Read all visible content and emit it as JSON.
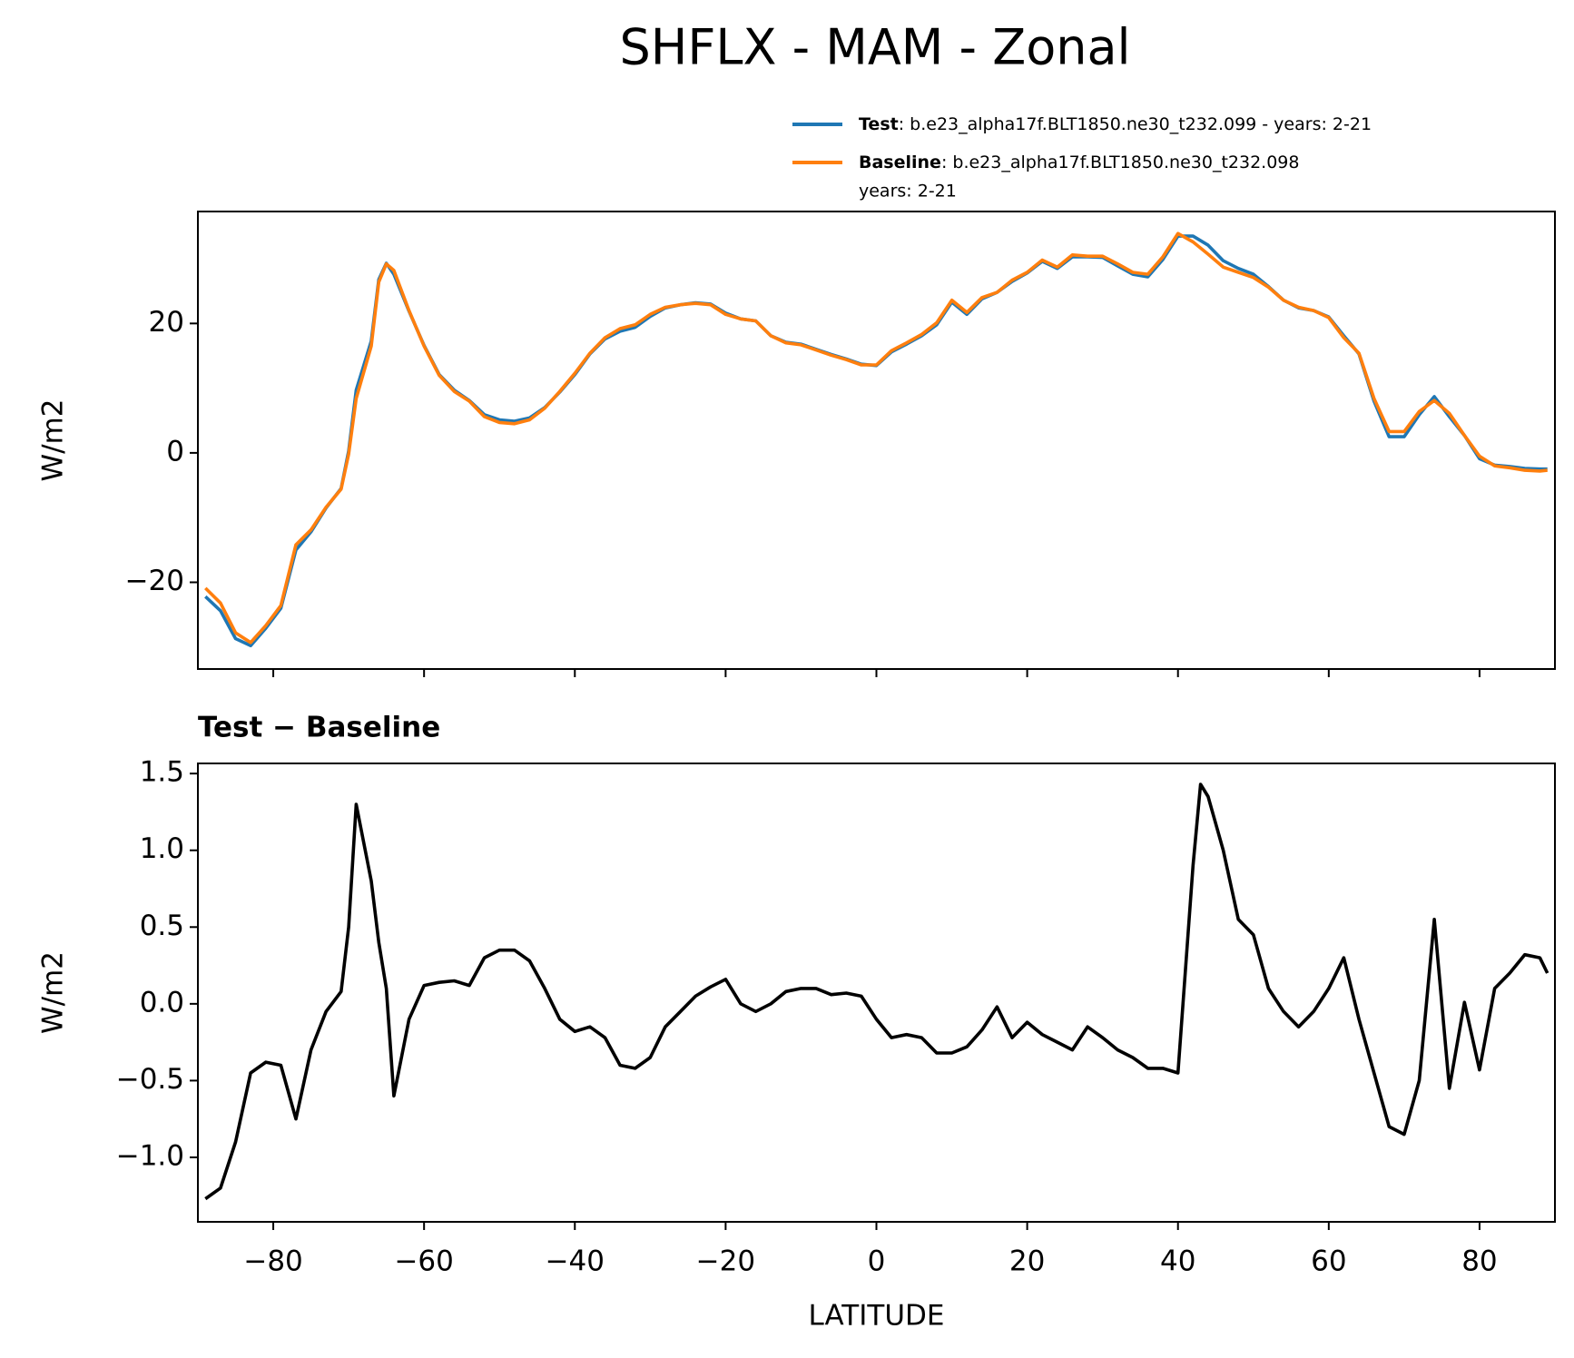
{
  "title": "SHFLX - MAM - Zonal",
  "chart_data": [
    {
      "type": "line",
      "ylabel": "W/m2",
      "x": [
        -89,
        -87,
        -85,
        -83,
        -81,
        -79,
        -77,
        -75,
        -73,
        -71,
        -70,
        -69,
        -67,
        -66,
        -65,
        -64,
        -62,
        -60,
        -58,
        -56,
        -54,
        -52,
        -50,
        -48,
        -46,
        -44,
        -42,
        -40,
        -38,
        -36,
        -34,
        -32,
        -30,
        -28,
        -26,
        -24,
        -22,
        -20,
        -18,
        -16,
        -14,
        -12,
        -10,
        -8,
        -6,
        -4,
        -2,
        0,
        2,
        4,
        6,
        8,
        10,
        12,
        14,
        16,
        18,
        20,
        22,
        24,
        26,
        28,
        30,
        32,
        34,
        36,
        38,
        40,
        42,
        44,
        46,
        48,
        50,
        52,
        54,
        56,
        58,
        60,
        62,
        64,
        66,
        68,
        70,
        72,
        74,
        76,
        78,
        80,
        82,
        84,
        86,
        88,
        89
      ],
      "series": [
        {
          "name": "Test",
          "description": [
            ": b.e23_alpha17f.BLT1850.ne30_t232.099 - years: 2-21"
          ],
          "color": "#1f77b4",
          "values": [
            -22.2,
            -24.4,
            -28.7,
            -29.8,
            -27.1,
            -24.0,
            -15.0,
            -12.2,
            -8.5,
            -5.5,
            0.3,
            9.7,
            17.3,
            26.8,
            29.3,
            27.6,
            21.9,
            16.6,
            12.1,
            9.7,
            8.1,
            5.9,
            5.1,
            4.9,
            5.4,
            7.0,
            9.4,
            12.1,
            15.3,
            17.6,
            18.8,
            19.4,
            21.1,
            22.4,
            22.9,
            23.2,
            23.0,
            21.6,
            20.7,
            20.4,
            18.1,
            17.1,
            16.8,
            16.0,
            15.2,
            14.5,
            13.7,
            13.5,
            15.6,
            16.8,
            18.1,
            19.8,
            23.3,
            21.4,
            23.8,
            24.8,
            26.5,
            27.8,
            29.6,
            28.5,
            30.3,
            30.3,
            30.2,
            28.9,
            27.6,
            27.2,
            29.9,
            33.5,
            33.5,
            32.1,
            29.7,
            28.5,
            27.6,
            25.7,
            23.6,
            22.4,
            22.0,
            21.0,
            18.1,
            15.3,
            8.0,
            2.5,
            2.5,
            5.9,
            8.7,
            5.6,
            2.7,
            -0.9,
            -1.9,
            -2.1,
            -2.4,
            -2.5,
            -2.5
          ]
        },
        {
          "name": "Baseline",
          "description": [
            ": b.e23_alpha17f.BLT1850.ne30_t232.098",
            "years: 2-21"
          ],
          "color": "#ff7f0e",
          "values": [
            -20.9,
            -23.2,
            -27.8,
            -29.3,
            -26.7,
            -23.6,
            -14.2,
            -11.9,
            -8.4,
            -5.6,
            -0.2,
            8.4,
            16.5,
            26.4,
            29.2,
            28.2,
            22.0,
            16.5,
            12.0,
            9.5,
            8.0,
            5.6,
            4.7,
            4.5,
            5.1,
            6.9,
            9.5,
            12.3,
            15.4,
            17.8,
            19.2,
            19.8,
            21.4,
            22.5,
            22.9,
            23.1,
            22.9,
            21.4,
            20.7,
            20.4,
            18.1,
            17.0,
            16.7,
            15.9,
            15.1,
            14.4,
            13.6,
            13.6,
            15.8,
            17.0,
            18.3,
            20.1,
            23.6,
            21.7,
            24.0,
            24.8,
            26.7,
            27.9,
            29.8,
            28.7,
            30.6,
            30.4,
            30.4,
            29.2,
            27.9,
            27.6,
            30.3,
            33.9,
            32.6,
            30.7,
            28.7,
            27.9,
            27.1,
            25.6,
            23.6,
            22.5,
            22.0,
            20.9,
            17.8,
            15.4,
            8.4,
            3.3,
            3.3,
            6.4,
            8.1,
            6.1,
            2.7,
            -0.5,
            -2.0,
            -2.3,
            -2.7,
            -2.8,
            -2.7
          ]
        }
      ],
      "xlim": [
        -90,
        90
      ],
      "xticks": [
        {
          "value": -80,
          "label": "−80"
        },
        {
          "value": -60,
          "label": "−60"
        },
        {
          "value": -40,
          "label": "−40"
        },
        {
          "value": -20,
          "label": "−20"
        },
        0,
        20,
        40,
        60,
        80
      ],
      "ylim": [
        -33.4,
        37.3
      ],
      "yticks": [
        {
          "value": -20,
          "label": "−20"
        },
        0,
        20
      ]
    },
    {
      "type": "line",
      "title": "Test − Baseline",
      "xlabel": "LATITUDE",
      "ylabel": "W/m2",
      "x": [
        -89,
        -87,
        -85,
        -83,
        -81,
        -79,
        -77,
        -75,
        -73,
        -71,
        -70,
        -69,
        -67,
        -66,
        -65,
        -64,
        -62,
        -60,
        -58,
        -56,
        -54,
        -52,
        -50,
        -48,
        -46,
        -44,
        -42,
        -40,
        -38,
        -36,
        -34,
        -32,
        -30,
        -28,
        -26,
        -24,
        -22,
        -20,
        -18,
        -16,
        -14,
        -12,
        -10,
        -8,
        -6,
        -4,
        -2,
        0,
        2,
        4,
        6,
        8,
        10,
        12,
        14,
        16,
        18,
        20,
        22,
        24,
        26,
        28,
        30,
        32,
        34,
        36,
        38,
        40,
        42,
        43,
        44,
        46,
        48,
        50,
        52,
        54,
        56,
        58,
        60,
        62,
        64,
        66,
        68,
        70,
        72,
        74,
        76,
        78,
        80,
        82,
        84,
        86,
        88,
        89
      ],
      "series": [
        {
          "color": "#000000",
          "values": [
            -1.27,
            -1.2,
            -0.9,
            -0.45,
            -0.38,
            -0.4,
            -0.75,
            -0.3,
            -0.05,
            0.08,
            0.5,
            1.3,
            0.8,
            0.4,
            0.1,
            -0.6,
            -0.1,
            0.12,
            0.14,
            0.15,
            0.12,
            0.3,
            0.35,
            0.35,
            0.28,
            0.1,
            -0.1,
            -0.18,
            -0.15,
            -0.22,
            -0.4,
            -0.42,
            -0.35,
            -0.15,
            -0.05,
            0.05,
            0.11,
            0.16,
            0,
            -0.05,
            0,
            0.08,
            0.1,
            0.1,
            0.06,
            0.07,
            0.05,
            -0.1,
            -0.22,
            -0.2,
            -0.22,
            -0.32,
            -0.32,
            -0.28,
            -0.17,
            -0.02,
            -0.22,
            -0.12,
            -0.2,
            -0.25,
            -0.3,
            -0.15,
            -0.22,
            -0.3,
            -0.35,
            -0.42,
            -0.42,
            -0.45,
            0.9,
            1.43,
            1.35,
            1.0,
            0.55,
            0.45,
            0.1,
            -0.05,
            -0.15,
            -0.05,
            0.1,
            0.3,
            -0.1,
            -0.45,
            -0.8,
            -0.85,
            -0.5,
            0.55,
            -0.55,
            0.01,
            -0.43,
            0.1,
            0.2,
            0.32,
            0.3,
            0.2
          ]
        }
      ],
      "xlim": [
        -90,
        90
      ],
      "xticks": [
        {
          "value": -80,
          "label": "−80"
        },
        {
          "value": -60,
          "label": "−60"
        },
        {
          "value": -40,
          "label": "−40"
        },
        {
          "value": -20,
          "label": "−20"
        },
        0,
        20,
        40,
        60,
        80
      ],
      "ylim": [
        -1.42,
        1.566
      ],
      "yticks": [
        {
          "value": -1.0,
          "label": "−1.0"
        },
        {
          "value": -0.5,
          "label": "−0.5"
        },
        {
          "value": 0.0,
          "label": "0.0"
        },
        0.5,
        {
          "value": 1.0,
          "label": "1.0"
        },
        1.5
      ]
    }
  ]
}
